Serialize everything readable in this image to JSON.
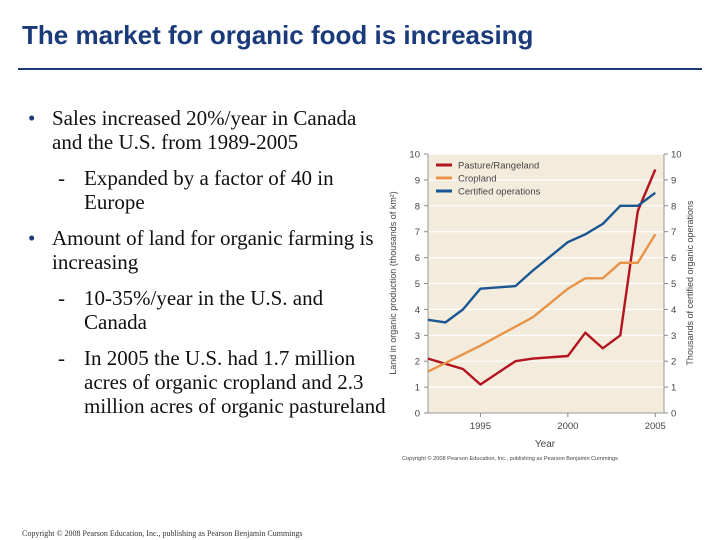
{
  "slide": {
    "title": "The market for organic food is increasing",
    "bullets": [
      {
        "text": "Sales increased 20%/year in Canada and the U.S. from 1989-2005",
        "subs": [
          "Expanded by a factor of 40 in Europe"
        ]
      },
      {
        "text": "Amount of land for organic farming is increasing",
        "subs": [
          "10-35%/year in the U.S. and Canada",
          "In 2005 the U.S. had 1.7 million acres of organic cropland and 2.3 million acres of organic pastureland"
        ]
      }
    ],
    "bullet_symbol": "•",
    "dash_symbol": "-",
    "copyright": "Copyright © 2008 Pearson Education, Inc., publishing as Pearson Benjamin Cummings"
  },
  "chart_data": {
    "type": "line",
    "xlabel": "Year",
    "ylabel": "Land in organic production (thousands of km²)",
    "y2label": "Thousands of certified organic operations",
    "xlim": [
      1992,
      2005.5
    ],
    "ylim": [
      0,
      10
    ],
    "y2lim": [
      0,
      10
    ],
    "x_ticks": [
      1995,
      2000,
      2005
    ],
    "y_ticks": [
      0,
      1,
      2,
      3,
      4,
      5,
      6,
      7,
      8,
      9,
      10
    ],
    "credit": "Copyright © 2008 Pearson Education, Inc., publishing as Pearson Benjamin Cummings",
    "legend_position": "top-left",
    "series": [
      {
        "name": "Pasture/Rangeland",
        "axis": "left",
        "color": "#b3141f",
        "x": [
          1992,
          1993,
          1994,
          1995,
          1997,
          1998,
          2000,
          2001,
          2002,
          2003,
          2004,
          2005
        ],
        "y": [
          2.1,
          1.9,
          1.7,
          1.1,
          2.0,
          2.1,
          2.2,
          3.1,
          2.5,
          3.0,
          7.8,
          9.4
        ]
      },
      {
        "name": "Cropland",
        "axis": "left",
        "color": "#e8934a",
        "x": [
          1992,
          1995,
          1998,
          2000,
          2001,
          2002,
          2003,
          2004,
          2005
        ],
        "y": [
          1.6,
          2.6,
          3.7,
          4.8,
          5.2,
          5.2,
          5.8,
          5.8,
          6.9
        ]
      },
      {
        "name": "Certified operations",
        "axis": "right",
        "color": "#1a5693",
        "x": [
          1992,
          1993,
          1994,
          1995,
          1997,
          1998,
          2000,
          2001,
          2002,
          2003,
          2004,
          2005
        ],
        "y": [
          3.6,
          3.5,
          4.0,
          4.8,
          4.9,
          5.5,
          6.6,
          6.9,
          7.3,
          8.0,
          8.0,
          8.5
        ]
      }
    ]
  }
}
